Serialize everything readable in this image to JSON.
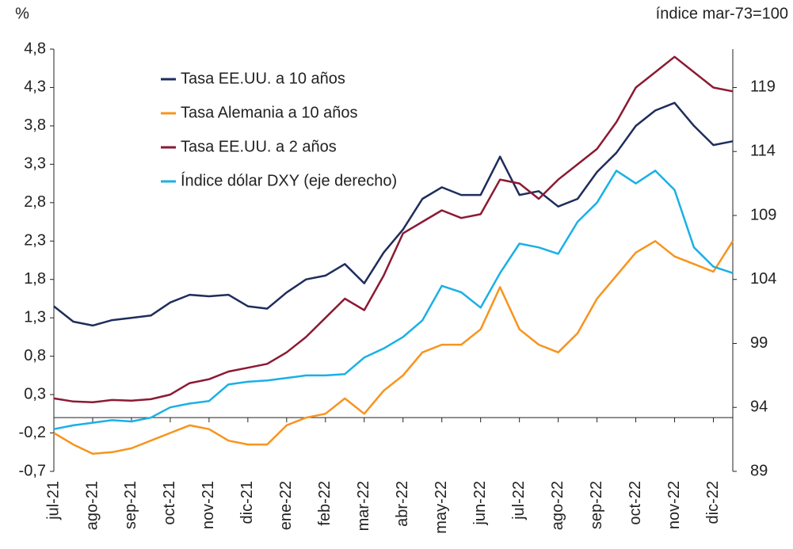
{
  "chart_data": {
    "type": "line",
    "y_unit_label": "%",
    "y2_unit_label": "índice mar-73=100",
    "categories": [
      "jul-21",
      null,
      "ago-21",
      null,
      "sep-21",
      null,
      "oct-21",
      null,
      "nov-21",
      null,
      "dic-21",
      null,
      "ene-22",
      null,
      "feb-22",
      null,
      "mar-22",
      null,
      "abr-22",
      null,
      "may-22",
      null,
      "jun-22",
      null,
      "jul-22",
      null,
      "ago-22",
      null,
      "sep-22",
      null,
      "oct-22",
      null,
      "nov-22",
      null,
      "dic-22",
      null
    ],
    "series": [
      {
        "name": "Tasa EE.UU. a 10 años",
        "color": "#1f2d5c",
        "values": [
          1.45,
          1.25,
          1.2,
          1.27,
          1.3,
          1.33,
          1.5,
          1.6,
          1.58,
          1.6,
          1.45,
          1.42,
          1.63,
          1.8,
          1.85,
          2.0,
          1.75,
          2.15,
          2.45,
          2.85,
          3.0,
          2.9,
          2.9,
          3.4,
          2.9,
          2.95,
          2.75,
          2.85,
          3.2,
          3.45,
          3.8,
          4.0,
          4.1,
          3.8,
          3.55,
          3.6
        ]
      },
      {
        "name": "Tasa Alemania a 10 años",
        "color": "#f7941d",
        "values": [
          -0.2,
          -0.35,
          -0.47,
          -0.45,
          -0.4,
          -0.3,
          -0.2,
          -0.1,
          -0.15,
          -0.3,
          -0.35,
          -0.35,
          -0.1,
          0.0,
          0.05,
          0.25,
          0.05,
          0.35,
          0.55,
          0.85,
          0.95,
          0.95,
          1.15,
          1.7,
          1.15,
          0.95,
          0.85,
          1.1,
          1.55,
          1.85,
          2.15,
          2.3,
          2.1,
          2.0,
          1.9,
          2.3
        ]
      },
      {
        "name": "Tasa EE.UU. a 2 años",
        "color": "#8b1a33",
        "values": [
          0.25,
          0.21,
          0.2,
          0.23,
          0.22,
          0.24,
          0.3,
          0.45,
          0.5,
          0.6,
          0.65,
          0.7,
          0.85,
          1.05,
          1.3,
          1.55,
          1.4,
          1.85,
          2.4,
          2.55,
          2.7,
          2.6,
          2.65,
          3.1,
          3.05,
          2.85,
          3.1,
          3.3,
          3.5,
          3.85,
          4.3,
          4.5,
          4.7,
          4.5,
          4.3,
          4.25
        ]
      },
      {
        "name": "Índice dólar DXY (eje derecho)",
        "color": "#1ab0e6",
        "axis": "y2",
        "values": [
          92.3,
          92.6,
          92.8,
          93.0,
          92.9,
          93.2,
          94.0,
          94.3,
          94.5,
          95.8,
          96.0,
          96.1,
          96.3,
          96.5,
          96.5,
          96.6,
          97.9,
          98.6,
          99.5,
          100.8,
          103.5,
          103.0,
          101.8,
          104.5,
          106.8,
          106.5,
          106.0,
          108.5,
          110.0,
          112.5,
          111.5,
          112.5,
          111.0,
          106.5,
          105.0,
          104.5
        ]
      }
    ],
    "ylim": [
      -0.7,
      4.8
    ],
    "yticks": [
      {
        "value": -0.7,
        "label": "-0,7"
      },
      {
        "value": -0.2,
        "label": "-0,2"
      },
      {
        "value": 0.3,
        "label": "0,3"
      },
      {
        "value": 0.8,
        "label": "0,8"
      },
      {
        "value": 1.3,
        "label": "1,3"
      },
      {
        "value": 1.8,
        "label": "1,8"
      },
      {
        "value": 2.3,
        "label": "2,3"
      },
      {
        "value": 2.8,
        "label": "2,8"
      },
      {
        "value": 3.3,
        "label": "3,3"
      },
      {
        "value": 3.8,
        "label": "3,8"
      },
      {
        "value": 4.3,
        "label": "4,3"
      },
      {
        "value": 4.8,
        "label": "4,8"
      }
    ],
    "y2lim": [
      89,
      122
    ],
    "y2ticks": [
      89,
      94,
      99,
      104,
      109,
      114,
      119
    ],
    "grid": false
  }
}
